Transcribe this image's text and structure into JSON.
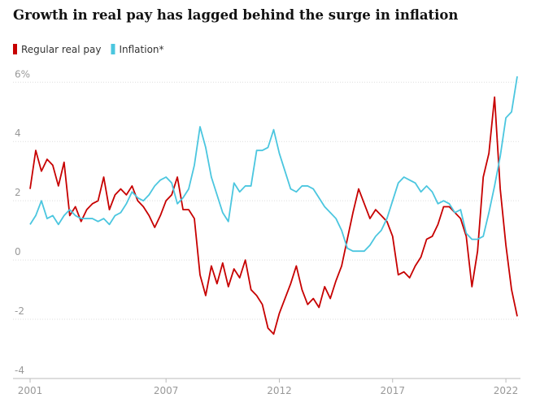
{
  "chart_data": {
    "type": "line",
    "title": "Growth in real pay has lagged behind the surge in inflation",
    "x": [
      2001,
      2001.25,
      2001.5,
      2001.75,
      2002,
      2002.25,
      2002.5,
      2002.75,
      2003,
      2003.25,
      2003.5,
      2003.75,
      2004,
      2004.25,
      2004.5,
      2004.75,
      2005,
      2005.25,
      2005.5,
      2005.75,
      2006,
      2006.25,
      2006.5,
      2006.75,
      2007,
      2007.25,
      2007.5,
      2007.75,
      2008,
      2008.25,
      2008.5,
      2008.75,
      2009,
      2009.25,
      2009.5,
      2009.75,
      2010,
      2010.25,
      2010.5,
      2010.75,
      2011,
      2011.25,
      2011.5,
      2011.75,
      2012,
      2012.25,
      2012.5,
      2012.75,
      2013,
      2013.25,
      2013.5,
      2013.75,
      2014,
      2014.25,
      2014.5,
      2014.75,
      2015,
      2015.25,
      2015.5,
      2015.75,
      2016,
      2016.25,
      2016.5,
      2016.75,
      2017,
      2017.25,
      2017.5,
      2017.75,
      2018,
      2018.25,
      2018.5,
      2018.75,
      2019,
      2019.25,
      2019.5,
      2019.75,
      2020,
      2020.25,
      2020.5,
      2020.75,
      2021,
      2021.25,
      2021.5,
      2021.75,
      2022,
      2022.25,
      2022.5
    ],
    "series": [
      {
        "name": "Regular real pay",
        "color": "#c70000",
        "values": [
          2.4,
          3.7,
          3.0,
          3.4,
          3.2,
          2.5,
          3.3,
          1.5,
          1.8,
          1.3,
          1.7,
          1.9,
          2.0,
          2.8,
          1.7,
          2.2,
          2.4,
          2.2,
          2.5,
          2.0,
          1.8,
          1.5,
          1.1,
          1.5,
          2.0,
          2.2,
          2.8,
          1.7,
          1.7,
          1.4,
          -0.5,
          -1.2,
          -0.2,
          -0.8,
          -0.1,
          -0.9,
          -0.3,
          -0.6,
          0.0,
          -1.0,
          -1.2,
          -1.5,
          -2.3,
          -2.5,
          -1.8,
          -1.3,
          -0.8,
          -0.2,
          -1.0,
          -1.5,
          -1.3,
          -1.6,
          -0.9,
          -1.3,
          -0.7,
          -0.2,
          0.7,
          1.6,
          2.4,
          1.9,
          1.4,
          1.7,
          1.5,
          1.3,
          0.8,
          -0.5,
          -0.4,
          -0.6,
          -0.2,
          0.1,
          0.7,
          0.8,
          1.2,
          1.8,
          1.8,
          1.6,
          1.4,
          0.8,
          -0.9,
          0.3,
          2.8,
          3.6,
          5.5,
          2.4,
          0.5,
          -1.0,
          -1.9
        ]
      },
      {
        "name": "Inflation*",
        "color": "#4bc6df",
        "values": [
          1.2,
          1.5,
          2.0,
          1.4,
          1.5,
          1.2,
          1.5,
          1.7,
          1.5,
          1.4,
          1.4,
          1.4,
          1.3,
          1.4,
          1.2,
          1.5,
          1.6,
          1.9,
          2.3,
          2.1,
          2.0,
          2.2,
          2.5,
          2.7,
          2.8,
          2.6,
          1.9,
          2.1,
          2.4,
          3.2,
          4.5,
          3.8,
          2.8,
          2.2,
          1.6,
          1.3,
          2.6,
          2.3,
          2.5,
          2.5,
          3.7,
          3.7,
          3.8,
          4.4,
          3.6,
          3.0,
          2.4,
          2.3,
          2.5,
          2.5,
          2.4,
          2.1,
          1.8,
          1.6,
          1.4,
          1.0,
          0.4,
          0.3,
          0.3,
          0.3,
          0.5,
          0.8,
          1.0,
          1.4,
          2.0,
          2.6,
          2.8,
          2.7,
          2.6,
          2.3,
          2.5,
          2.3,
          1.9,
          2.0,
          1.9,
          1.6,
          1.7,
          0.9,
          0.7,
          0.7,
          0.8,
          1.6,
          2.5,
          3.5,
          4.8,
          5.0,
          6.2
        ]
      }
    ],
    "xlim": [
      2001,
      2022.5
    ],
    "xticks": [
      2001,
      2007,
      2012,
      2017,
      2022
    ],
    "ylim": [
      -4,
      6.2
    ],
    "yticks": [
      {
        "value": 6,
        "label": "6%"
      },
      4,
      2,
      0,
      -2,
      -4
    ],
    "grid": true
  }
}
